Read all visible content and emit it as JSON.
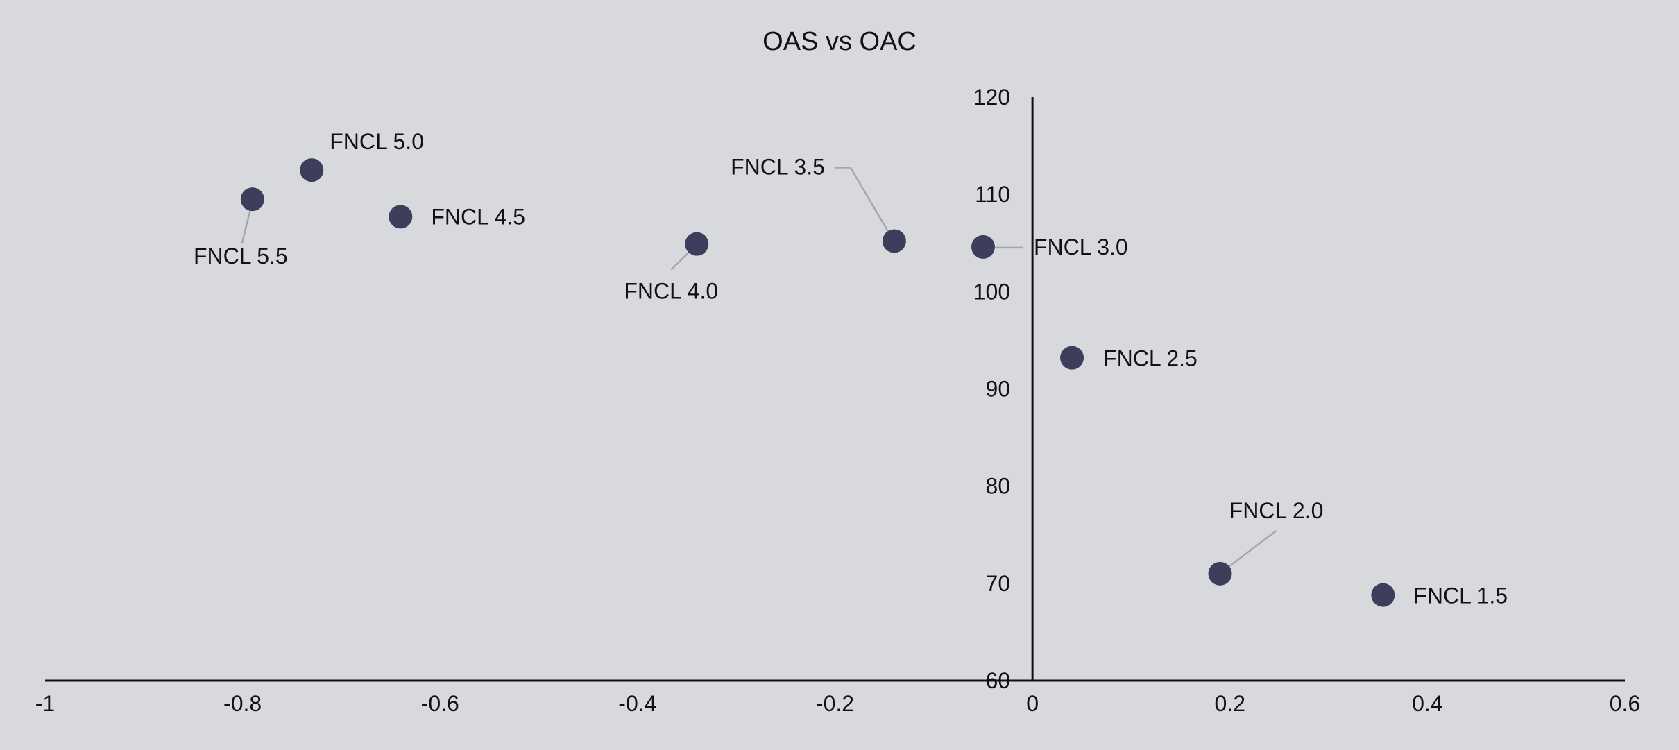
{
  "chart_data": {
    "type": "scatter",
    "title": "OAS vs OAC",
    "xlabel": "",
    "ylabel": "",
    "xlim": [
      -1,
      0.6
    ],
    "ylim": [
      60,
      120
    ],
    "xticks": [
      -1,
      -0.8,
      -0.6,
      -0.4,
      -0.2,
      0,
      0.2,
      0.4,
      0.6
    ],
    "yticks": [
      60,
      70,
      80,
      90,
      100,
      110,
      120
    ],
    "xtick_labels": [
      "-1",
      "-0.8",
      "-0.6",
      "-0.4",
      "-0.2",
      "0",
      "0.2",
      "0.4",
      "0.6"
    ],
    "ytick_labels": [
      "60",
      "70",
      "80",
      "90",
      "100",
      "110",
      "120"
    ],
    "grid": false,
    "legend": "none",
    "marker_color": "#3d3e5c",
    "background": "#d8d9dd",
    "points": [
      {
        "label": "FNCL 5.5",
        "x": -0.79,
        "y": 109.5
      },
      {
        "label": "FNCL 5.0",
        "x": -0.73,
        "y": 112.5
      },
      {
        "label": "FNCL 4.5",
        "x": -0.64,
        "y": 107.7
      },
      {
        "label": "FNCL 4.0",
        "x": -0.34,
        "y": 104.9
      },
      {
        "label": "FNCL 3.5",
        "x": -0.14,
        "y": 105.2
      },
      {
        "label": "FNCL 3.0",
        "x": -0.05,
        "y": 104.6
      },
      {
        "label": "FNCL 2.5",
        "x": 0.04,
        "y": 93.2
      },
      {
        "label": "FNCL 2.0",
        "x": 0.19,
        "y": 71.0
      },
      {
        "label": "FNCL 1.5",
        "x": 0.355,
        "y": 68.8
      }
    ]
  }
}
